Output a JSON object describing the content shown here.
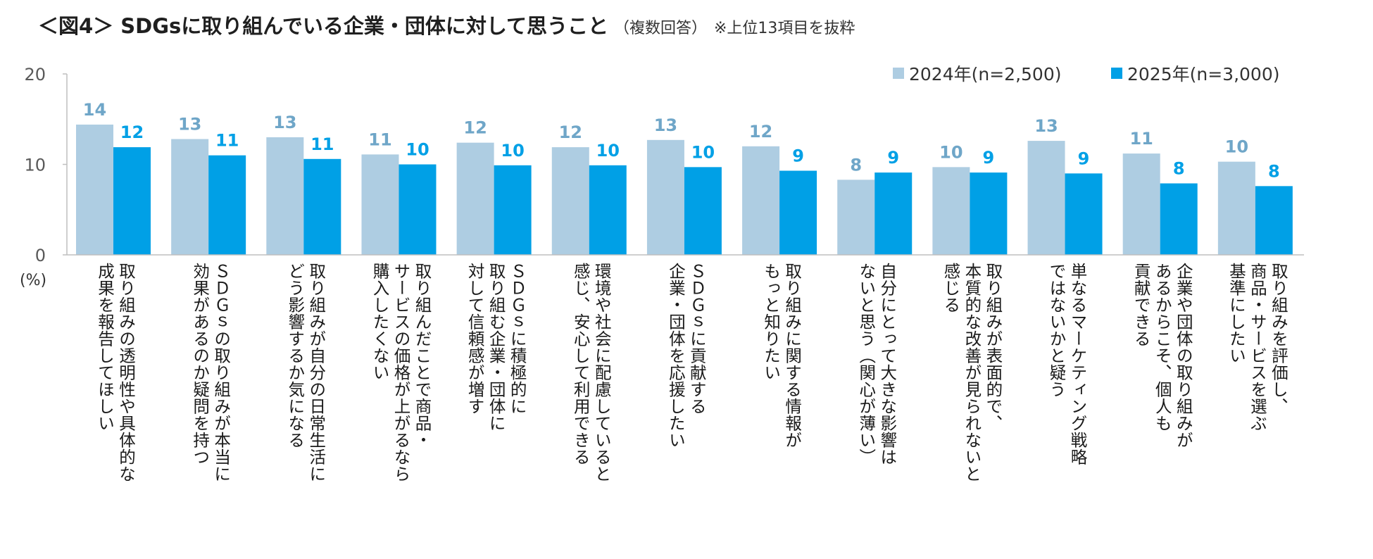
{
  "title": {
    "main": "＜図4＞ SDGsに取り組んでいる企業・団体に対して思うこと",
    "sub": "（複数回答）",
    "note": "※上位13項目を抜粋"
  },
  "colors": {
    "series_2024": "#aecde2",
    "series_2025": "#00a0e6",
    "label_2024": "#6fa6c8",
    "label_2025": "#00a0e6",
    "axis": "#bfbfbf"
  },
  "chart_data": {
    "type": "bar",
    "title": "＜図4＞ SDGsに取り組んでいる企業・団体に対して思うこと",
    "ylabel": "(%)",
    "ylim": [
      0,
      20
    ],
    "yticks": [
      "0",
      "10",
      "20"
    ],
    "legend_position": "top-right",
    "categories": [
      "取り組みの透明性や具体的な成果を報告してほしい",
      "ＳＤＧｓの取り組みが本当に効果があるのか疑問を持つ",
      "取り組みが自分の日常生活にどう影響するか気になる",
      "取り組んだことで商品・サービスの価格が上がるなら購入したくない",
      "ＳＤＧｓに積極的に取り組む企業・団体に対して信頼感が増す",
      "環境や社会に配慮していると感じ、安心して利用できる",
      "ＳＤＧｓに貢献する企業・団体を応援したい",
      "取り組みに関する情報がもっと知りたい",
      "自分にとって大きな影響はないと思う（関心が薄い）",
      "取り組みが表面的で、本質的な改善が見られないと感じる",
      "単なるマーケティング戦略ではないかと疑う",
      "企業や団体の取り組みがあるからこそ、個人も貢献できる",
      "取り組みを評価し、商品・サービスを選ぶ基準にしたい"
    ],
    "category_lines": [
      [
        "取り組みの透明性や具体的な",
        "成果を報告してほしい"
      ],
      [
        "ＳＤＧｓの取り組みが本当に",
        "効果があるのか疑問を持つ"
      ],
      [
        "取り組みが自分の日常生活に",
        "どう影響するか気になる"
      ],
      [
        "取り組んだことで商品・",
        "サービスの価格が上がるなら",
        "購入したくない"
      ],
      [
        "ＳＤＧｓに積極的に",
        "取り組む企業・団体に",
        "対して信頼感が増す"
      ],
      [
        "環境や社会に配慮していると",
        "感じ、安心して利用できる"
      ],
      [
        "ＳＤＧｓに貢献する",
        "企業・団体を応援したい"
      ],
      [
        "取り組みに関する情報が",
        "もっと知りたい"
      ],
      [
        "自分にとって大きな影響は",
        "ないと思う（関心が薄い）"
      ],
      [
        "取り組みが表面的で、",
        "本質的な改善が見られないと",
        "感じる"
      ],
      [
        "単なるマーケティング戦略",
        "ではないかと疑う"
      ],
      [
        "企業や団体の取り組みが",
        "あるからこそ、個人も",
        "貢献できる"
      ],
      [
        "取り組みを評価し、",
        "商品・サービスを選ぶ",
        "基準にしたい"
      ]
    ],
    "series": [
      {
        "name": "2024年(n=2,500)",
        "values": [
          14.4,
          12.8,
          13.0,
          11.1,
          12.4,
          11.9,
          12.7,
          12.0,
          8.3,
          9.7,
          12.6,
          11.2,
          10.3
        ],
        "labels": [
          "14",
          "13",
          "13",
          "11",
          "12",
          "12",
          "13",
          "12",
          "8",
          "10",
          "13",
          "11",
          "10"
        ]
      },
      {
        "name": "2025年(n=3,000)",
        "values": [
          11.9,
          11.0,
          10.6,
          10.0,
          9.9,
          9.9,
          9.7,
          9.3,
          9.1,
          9.1,
          9.0,
          7.9,
          7.6
        ],
        "labels": [
          "12",
          "11",
          "11",
          "10",
          "10",
          "10",
          "10",
          "9",
          "9",
          "9",
          "9",
          "8",
          "8"
        ]
      }
    ]
  }
}
